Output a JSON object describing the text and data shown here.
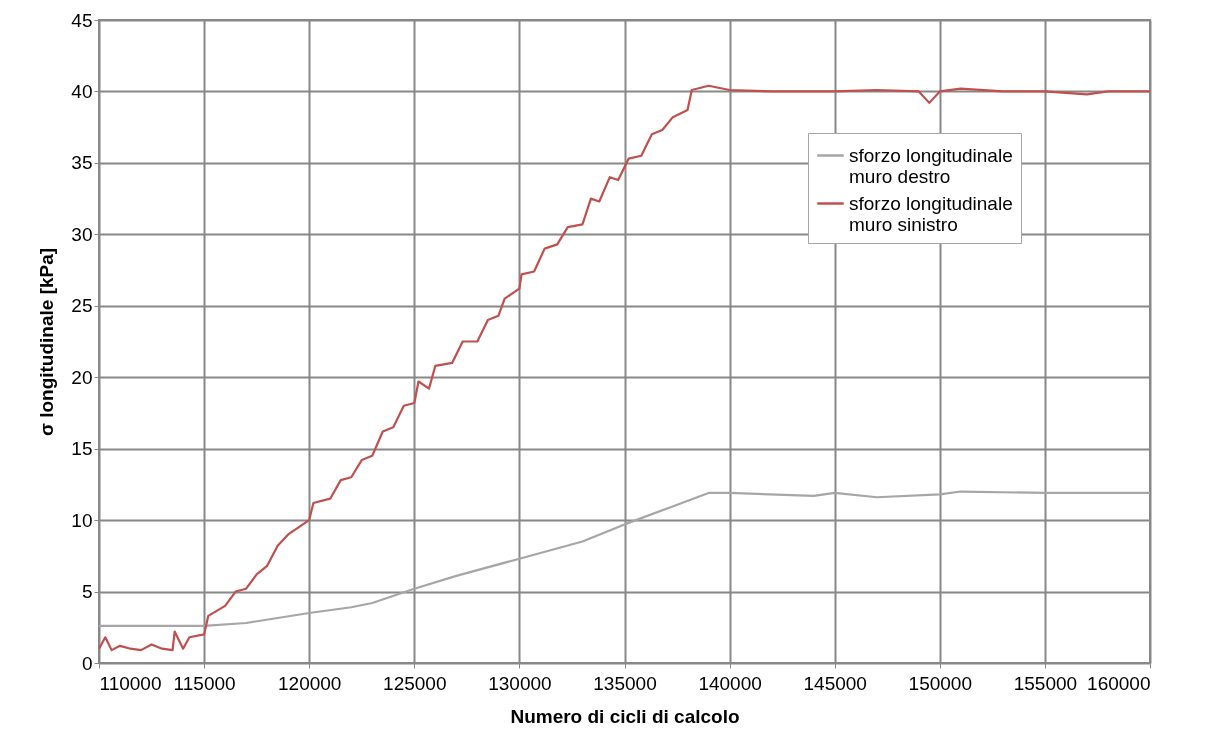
{
  "chart_data": {
    "type": "line",
    "xlabel": "Numero di cicli di calcolo",
    "ylabel": "σ longitudinale [kPa]",
    "xlim": [
      110000,
      160000
    ],
    "xticks": [
      110000,
      115000,
      120000,
      125000,
      130000,
      135000,
      140000,
      145000,
      150000,
      155000,
      160000
    ],
    "ylim": [
      0,
      45
    ],
    "yticks": [
      0,
      5,
      10,
      15,
      20,
      25,
      30,
      35,
      40,
      45
    ],
    "grid": true,
    "legend": "top right",
    "marker": "none",
    "line_style": "solid",
    "series": [
      {
        "name": "sforzo longitudinale muro destro",
        "color": "#a6a6a6",
        "x": [
          110000,
          112000,
          115000,
          117000,
          120000,
          122000,
          123000,
          125000,
          127000,
          130000,
          133000,
          135000,
          137000,
          139000,
          140000,
          144000,
          145000,
          147000,
          150000,
          151000,
          155000,
          160000
        ],
        "values": [
          2.6,
          2.6,
          2.6,
          2.8,
          3.5,
          3.9,
          4.2,
          5.2,
          6.1,
          7.3,
          8.5,
          9.7,
          10.8,
          11.9,
          11.9,
          11.7,
          11.9,
          11.6,
          11.8,
          12.0,
          11.9,
          11.9
        ]
      },
      {
        "name": "sforzo longitudinale muro sinistro",
        "color": "#c0504d",
        "x": [
          110000,
          110300,
          110600,
          111000,
          111500,
          112000,
          112500,
          113000,
          113500,
          113600,
          114000,
          114300,
          115000,
          115200,
          116000,
          116500,
          117000,
          117500,
          118000,
          118500,
          119000,
          120000,
          120200,
          121000,
          121500,
          122000,
          122500,
          123000,
          123500,
          124000,
          124500,
          125000,
          125200,
          125700,
          126000,
          126800,
          127300,
          128000,
          128500,
          129000,
          129300,
          130000,
          130100,
          130700,
          131200,
          131800,
          132300,
          133000,
          133400,
          133800,
          134300,
          134700,
          135200,
          135800,
          136300,
          136800,
          137300,
          138000,
          138200,
          139000,
          140000,
          142000,
          145000,
          147000,
          149000,
          149500,
          150000,
          151000,
          153000,
          155000,
          157000,
          158000,
          160000
        ],
        "values": [
          1.0,
          1.8,
          0.9,
          1.2,
          1.0,
          0.9,
          1.3,
          1.0,
          0.9,
          2.2,
          1.0,
          1.8,
          2.0,
          3.3,
          4.0,
          5.0,
          5.2,
          6.2,
          6.8,
          8.2,
          9.0,
          10.0,
          11.2,
          11.5,
          12.8,
          13.0,
          14.2,
          14.5,
          16.2,
          16.5,
          18.0,
          18.2,
          19.7,
          19.2,
          20.8,
          21.0,
          22.5,
          22.5,
          24.0,
          24.3,
          25.5,
          26.2,
          27.2,
          27.4,
          29.0,
          29.3,
          30.5,
          30.7,
          32.5,
          32.3,
          34.0,
          33.8,
          35.3,
          35.5,
          37.0,
          37.3,
          38.2,
          38.7,
          40.1,
          40.4,
          40.1,
          40.0,
          40.0,
          40.1,
          40.0,
          39.2,
          40.0,
          40.2,
          40.0,
          40.0,
          39.8,
          40.0,
          40.0
        ]
      }
    ]
  }
}
